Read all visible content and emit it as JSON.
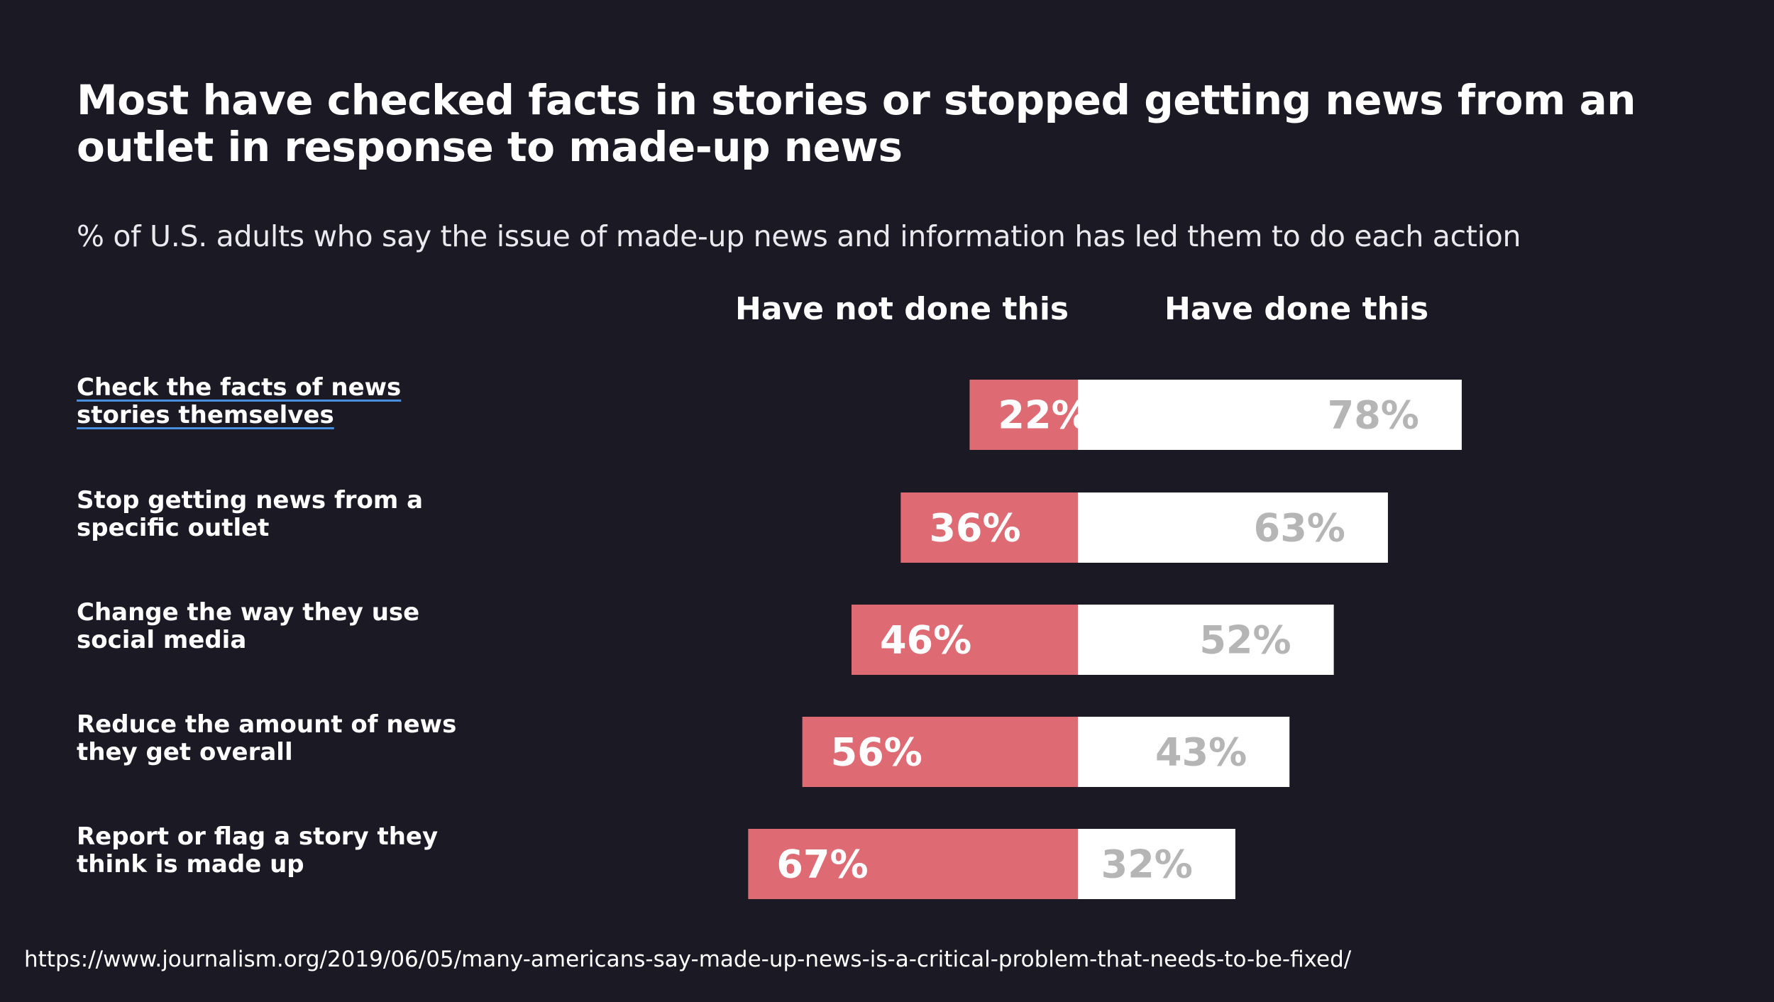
{
  "title": "Most have checked facts in stories or stopped getting news from an outlet in response to made-up news",
  "subtitle": "% of U.S. adults who say the issue of made-up news and information has led them to do each action",
  "headers": {
    "not_done": "Have not done this",
    "done": "Have done this"
  },
  "source_url": "https://www.journalism.org/2019/06/05/many-americans-say-made-up-news-is-a-critical-problem-that-needs-to-be-fixed/",
  "colors": {
    "background": "#1b1a24",
    "not_done_bar": "#de6b73",
    "done_bar": "#ffffff",
    "done_value_text": "#b5b5b5",
    "link_underline": "#4a8ee0"
  },
  "rows": [
    {
      "label": "Check the facts of news stories themselves",
      "linked": true
    },
    {
      "label": "Stop getting news from a specific outlet",
      "linked": false
    },
    {
      "label": "Change the way they use social media",
      "linked": false
    },
    {
      "label": "Reduce the amount of news they get overall",
      "linked": false
    },
    {
      "label": "Report or flag a story they think is made up",
      "linked": false
    }
  ],
  "chart_data": {
    "type": "bar",
    "orientation": "horizontal",
    "stacking": "diverging",
    "title": "Most have checked facts in stories or stopped getting news from an outlet in response to made-up news",
    "subtitle": "% of U.S. adults who say the issue of made-up news and information has led them to do each action",
    "categories": [
      "Check the facts of news stories themselves",
      "Stop getting news from a specific outlet",
      "Change the way they use social media",
      "Reduce the amount of news they get overall",
      "Report or flag a story they think is made up"
    ],
    "series": [
      {
        "name": "Have not done this",
        "values": [
          22,
          36,
          46,
          56,
          67
        ],
        "labels": [
          "22%",
          "36%",
          "46%",
          "56%",
          "67%"
        ]
      },
      {
        "name": "Have done this",
        "values": [
          78,
          63,
          52,
          43,
          32
        ],
        "labels": [
          "78%",
          "63%",
          "52%",
          "43%",
          "32%"
        ]
      }
    ],
    "unit": "%",
    "xlim": [
      -100,
      100
    ],
    "grid": false
  }
}
